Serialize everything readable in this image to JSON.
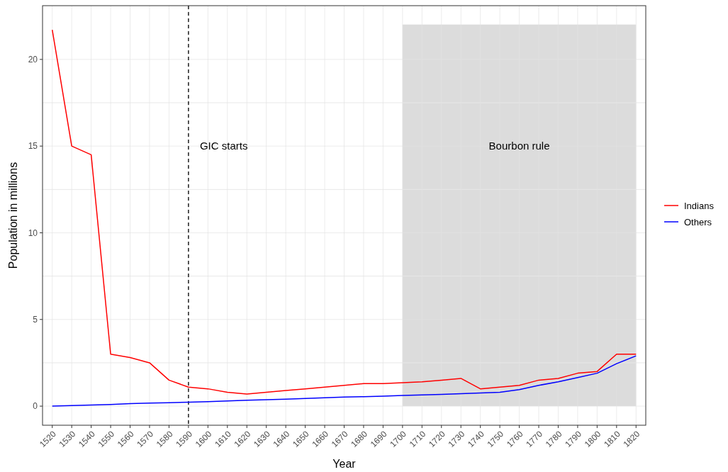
{
  "chart_data": {
    "type": "line",
    "xlabel": "Year",
    "ylabel": "Population in millions",
    "x": [
      1520,
      1530,
      1540,
      1550,
      1560,
      1570,
      1580,
      1590,
      1600,
      1610,
      1620,
      1630,
      1640,
      1650,
      1660,
      1670,
      1680,
      1690,
      1700,
      1710,
      1720,
      1730,
      1740,
      1750,
      1760,
      1770,
      1780,
      1790,
      1800,
      1810,
      1820
    ],
    "series": [
      {
        "name": "Indians",
        "color": "#ff0000",
        "values": [
          21.7,
          15,
          14.5,
          3.0,
          2.8,
          2.5,
          1.5,
          1.1,
          1.0,
          0.8,
          0.7,
          0.8,
          0.9,
          1.0,
          1.1,
          1.2,
          1.3,
          1.3,
          1.35,
          1.4,
          1.5,
          1.6,
          1.0,
          1.1,
          1.2,
          1.5,
          1.6,
          1.9,
          2.0,
          3.0,
          3.0
        ]
      },
      {
        "name": "Others",
        "color": "#0000ff",
        "values": [
          0,
          0.03,
          0.06,
          0.1,
          0.15,
          0.18,
          0.2,
          0.23,
          0.26,
          0.3,
          0.34,
          0.37,
          0.4,
          0.44,
          0.48,
          0.52,
          0.55,
          0.58,
          0.62,
          0.65,
          0.68,
          0.72,
          0.76,
          0.8,
          0.95,
          1.2,
          1.4,
          1.65,
          1.9,
          2.45,
          2.9
        ]
      }
    ],
    "xlim": [
      1515,
      1825
    ],
    "xticks": [
      1520,
      1530,
      1540,
      1550,
      1560,
      1570,
      1580,
      1590,
      1600,
      1610,
      1620,
      1630,
      1640,
      1650,
      1660,
      1670,
      1680,
      1690,
      1700,
      1710,
      1720,
      1730,
      1740,
      1750,
      1760,
      1770,
      1780,
      1790,
      1800,
      1810,
      1820
    ],
    "ylim": [
      -1.1,
      23.1
    ],
    "yticks": [
      0,
      {
        "value": 2.5,
        "label": null
      },
      5,
      {
        "value": 7.5,
        "label": null
      },
      10,
      {
        "value": 12.5,
        "label": null
      },
      15,
      {
        "value": 17.5,
        "label": null
      },
      20
    ],
    "ref_lines": [
      {
        "axis": "x",
        "value": 1590,
        "label": "GIC starts",
        "line_style": "dashed",
        "color": "#000000"
      }
    ],
    "bands": [
      {
        "axis": "x",
        "from": 1700,
        "to": 1820,
        "label": "Bourbon rule",
        "color": "#dcdcdc"
      }
    ],
    "grid": true,
    "legend": "right",
    "marker": "none",
    "line_style": "solid"
  }
}
